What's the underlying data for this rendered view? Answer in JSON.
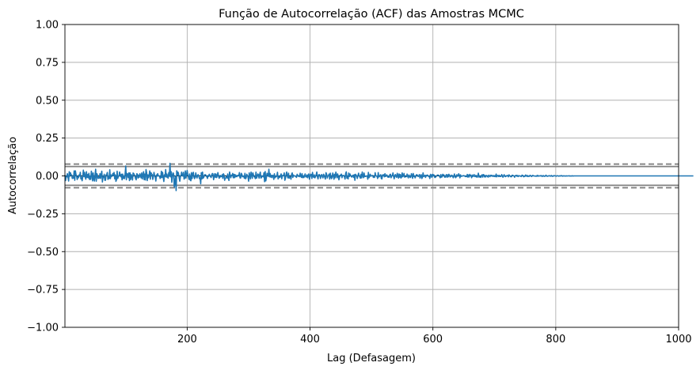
{
  "chart_data": {
    "type": "line",
    "title": "Função de Autocorrelação (ACF) das Amostras MCMC",
    "xlabel": "Lag (Defasagem)",
    "ylabel": "Autocorrelação",
    "xlim": [
      1,
      1000
    ],
    "ylim": [
      -1.0,
      1.0
    ],
    "grid": true,
    "x_ticks": [
      200,
      400,
      600,
      800,
      1000
    ],
    "x_tick_labels": [
      "200",
      "400",
      "600",
      "800",
      "1000"
    ],
    "y_ticks": [
      1.0,
      0.75,
      0.5,
      0.25,
      0.0,
      -0.25,
      -0.5,
      -0.75,
      -1.0
    ],
    "y_tick_labels": [
      "1.00",
      "0.75",
      "0.50",
      "0.25",
      "0.00",
      "−0.25",
      "−0.50",
      "−0.75",
      "−1.00"
    ],
    "reference_lines": {
      "zero": 0.0,
      "ci_95_dashed": [
        0.078,
        -0.078
      ],
      "ci_99_dashed": [
        0.062,
        -0.062
      ]
    },
    "series_color": "#1f77b4",
    "series": [
      {
        "values": [
          0.006,
          -0.031,
          -0.005,
          -0.006,
          0.015,
          -0.01,
          -0.034,
          0.028,
          -0.002,
          0.021,
          0.005,
          0.006,
          -0.017,
          -0.01,
          -0.015,
          0.033,
          -0.029,
          0.034,
          0.009,
          -0.002,
          -0.024,
          -0.005,
          -0.012,
          0.006,
          -0.001,
          0.024,
          -0.02,
          -0.009,
          -0.032,
          -0.004,
          0.038,
          -0.005,
          0.023,
          -0.008,
          -0.022,
          0.028,
          -0.01,
          0.009,
          -0.013,
          0.017,
          -0.024,
          -0.001,
          -0.023,
          0.031,
          0.012,
          -0.033,
          0.019,
          -0.021,
          -0.034,
          0.005,
          0.044,
          -0.035,
          0.015,
          0.004,
          -0.017,
          -0.009,
          -0.014,
          0.015,
          -0.017,
          0.01,
          0.031,
          -0.04,
          -0.004,
          -0.011,
          0.011,
          -0.029,
          -0.029,
          0.007,
          0.009,
          0.023,
          -0.023,
          -0.001,
          -0.018,
          0.041,
          -0.018,
          0.006,
          -0.004,
          0.003,
          0.016,
          0.002,
          0.023,
          -0.019,
          0.007,
          -0.036,
          -0.025,
          0.031,
          -0.017,
          -0.003,
          -0.001,
          0.026,
          0.005,
          -0.006,
          0.011,
          -0.026,
          0.012,
          -0.017,
          0.0,
          -0.018,
          0.015,
          0.065,
          -0.025,
          0.016,
          0.012,
          -0.011,
          0.02,
          -0.031,
          0.02,
          -0.024,
          0.008,
          -0.001,
          -0.027,
          0.019,
          0.015,
          0.008,
          -0.002,
          -0.017,
          -0.026,
          0.014,
          0.012,
          -0.015,
          0.004,
          -0.009,
          0.014,
          0.003,
          -0.013,
          0.02,
          -0.02,
          0.004,
          0.028,
          -0.025,
          0.012,
          -0.027,
          0.042,
          0.021,
          -0.031,
          0.007,
          -0.012,
          0.004,
          0.033,
          -0.022,
          0.022,
          0.013,
          0.009,
          -0.023,
          -0.003,
          0.023,
          0.001,
          -0.007,
          -0.034,
          0.006,
          -0.001,
          0.015,
          -0.001,
          0.001,
          -0.001,
          -0.017,
          -0.012,
          0.031,
          -0.011,
          0.023,
          -0.009,
          -0.037,
          0.007,
          -0.004,
          0.042,
          -0.008,
          0.012,
          -0.008,
          -0.015,
          0.022,
          -0.002,
          0.083,
          -0.006,
          0.028,
          -0.042,
          0.003,
          0.02,
          0.012,
          -0.073,
          -0.045,
          -0.002,
          -0.097,
          0.034,
          0.004,
          0.025,
          0.014,
          -0.015,
          -0.035,
          -0.004,
          0.004,
          0.025,
          0.002,
          -0.001,
          0.024,
          -0.021,
          -0.014,
          0.033,
          -0.014,
          0.009,
          0.036,
          0.008,
          -0.006,
          -0.023,
          0.013,
          -0.027,
          -0.032,
          0.022,
          -0.018,
          0.013,
          0.024,
          -0.006,
          -0.018,
          -0.009,
          0.02,
          -0.002,
          -0.014,
          0.004,
          0.008,
          -0.003,
          -0.018,
          -0.012,
          -0.052,
          0.021,
          -0.02,
          0.025,
          -0.015,
          -0.009,
          0.004,
          0.009,
          0.007,
          0.001,
          -0.006,
          -0.017,
          0.002,
          -0.003,
          0.011,
          0.001,
          -0.005,
          -0.011,
          0.008,
          0.016,
          0.013,
          -0.025,
          -0.003,
          0.015,
          -0.01,
          0.012,
          -0.011,
          0.002,
          0.022,
          0.001,
          -0.015,
          -0.011,
          0.003,
          -0.005,
          -0.004,
          0.008,
          -0.016,
          0.014,
          0.006,
          -0.029,
          -0.013,
          -0.013,
          -0.004,
          -0.014,
          0.013,
          -0.017,
          -0.03,
          0.026,
          0.006,
          -0.012,
          0.004,
          0.001,
          0.016,
          -0.012,
          0.011,
          -0.012,
          0.009,
          -0.006,
          0.003,
          -0.005,
          0.003,
          0.004,
          0.0,
          0.022,
          -0.013,
          -0.014,
          0.017,
          0.011,
          -0.006,
          -0.001,
          -0.001,
          -0.015,
          0.017,
          -0.019,
          -0.012,
          0.011,
          0.001,
          -0.005,
          -0.035,
          0.02,
          0.002,
          -0.02,
          0.025,
          0.01,
          -0.016,
          0.02,
          0.005,
          -0.005,
          -0.008,
          -0.018,
          0.025,
          -0.015,
          -0.004,
          0.013,
          0.008,
          -0.015,
          0.01,
          0.025,
          -0.014,
          -0.011,
          0.001,
          -0.002,
          -0.006,
          0.021,
          -0.038,
          0.029,
          -0.033,
          -0.01,
          0.017,
          0.011,
          -0.002,
          0.044,
          -0.006,
          0.016,
          -0.008,
          0.004,
          -0.011,
          0.004,
          0.003,
          -0.023,
          0.014,
          -0.012,
          -0.003,
          -0.006,
          0.001,
          0.024,
          -0.02,
          -0.002,
          -0.011,
          -0.01,
          0.004,
          0.013,
          -0.019,
          0.003,
          0.001,
          0.005,
          0.02,
          -0.029,
          -0.016,
          0.01,
          0.026,
          -0.001,
          -0.013,
          0.018,
          -0.015,
          -0.01,
          -0.007,
          -0.022,
          0.011,
          0.02,
          -0.01,
          0.006,
          -0.001,
          -0.0,
          0.0,
          -0.005,
          -0.01,
          0.011,
          0.003,
          -0.003,
          0.002,
          -0.005,
          0.018,
          -0.003,
          -0.01,
          0.015,
          -0.012,
          0.001,
          -0.011,
          0.001,
          0.013,
          -0.006,
          -0.007,
          0.006,
          -0.012,
          0.006,
          0.013,
          -0.022,
          -0.004,
          0.011,
          0.009,
          -0.017,
          0.023,
          -0.003,
          -0.01,
          0.007,
          -0.013,
          -0.003,
          0.007,
          0.026,
          -0.006,
          -0.02,
          0.006,
          0.009,
          0.003,
          -0.017,
          0.003,
          0.009,
          -0.004,
          -0.013,
          0.011,
          0.003,
          -0.01,
          -0.021,
          0.021,
          0.012,
          -0.014,
          -0.001,
          0.002,
          0.012,
          -0.021,
          0.018,
          -0.007,
          -0.018,
          -0.008,
          0.019,
          0.001,
          -0.022,
          0.011,
          -0.012,
          0.025,
          0.008,
          -0.012,
          0.013,
          -0.004,
          -0.026,
          -0.009,
          0.005,
          0.002,
          0.012,
          -0.012,
          0.003,
          0.002,
          0.003,
          -0.006,
          -0.021,
          0.016,
          0.027,
          -0.015,
          -0.003,
          -0.02,
          0.019,
          -0.004,
          0.013,
          0.004,
          -0.003,
          -0.008,
          0.001,
          0.005,
          -0.01,
          0.008,
          -0.029,
          0.011,
          0.005,
          -0.001,
          -0.017,
          0.002,
          0.018,
          0.001,
          -0.006,
          -0.015,
          0.011,
          -0.013,
          0.026,
          0.001,
          -0.012,
          0.019,
          -0.005,
          -0.004,
          -0.001,
          -0.002,
          0.001,
          -0.022,
          0.023,
          -0.012,
          -0.004,
          0.011,
          -0.001,
          0.0,
          0.002,
          0.003,
          -0.01,
          -0.009,
          -0.01,
          0.021,
          0.001,
          -0.001,
          -0.002,
          -0.017,
          0.022,
          -0.007,
          -0.004,
          0.004,
          0.008,
          -0.017,
          -0.02,
          0.007,
          0.001,
          0.008,
          -0.006,
          0.015,
          -0.004,
          0.002,
          0.007,
          -0.004,
          -0.009,
          -0.002,
          -0.009,
          0.01,
          0.011,
          -0.012,
          0.001,
          0.001,
          0.02,
          -0.004,
          -0.019,
          0.002,
          0.009,
          -0.005,
          -0.01,
          0.017,
          0.002,
          -0.015,
          0.013,
          -0.008,
          0.009,
          -0.014,
          -0.008,
          0.02,
          -0.005,
          -0.0,
          0.016,
          -0.008,
          -0.007,
          -0.004,
          -0.004,
          0.012,
          -0.003,
          -0.013,
          0.006,
          -0.001,
          -0.011,
          -0.008,
          0.015,
          0.005,
          -0.016,
          0.016,
          -0.004,
          0.001,
          -0.013,
          -0.004,
          0.007,
          0.008,
          0.002,
          -0.004,
          -0.0,
          0.009,
          -0.014,
          0.001,
          0.008,
          -0.017,
          -0.009,
          0.02,
          -0.004,
          -0.001,
          0.004,
          -0.01,
          0.004,
          0.0,
          0.006,
          0.002,
          -0.003,
          -0.004,
          -0.017,
          0.01,
          0.004,
          -0.009,
          0.01,
          -0.002,
          0.008,
          0.005,
          -0.01,
          -0.01,
          -0.004,
          -0.0,
          0.004,
          0.006,
          0.004,
          0.003,
          -0.005,
          -0.012,
          0.009,
          -0.008,
          -0.006,
          0.011,
          0.004,
          0.007,
          -0.008,
          -0.009,
          0.001,
          0.009,
          -0.009,
          0.007,
          -0.006,
          0.011,
          0.005,
          -0.007,
          -0.004,
          0.005,
          -0.002,
          0.002,
          -0.012,
          -0.005,
          0.013,
          -0.002,
          -0.012,
          -0.006,
          0.008,
          -0.002,
          -0.001,
          0.014,
          0.004,
          -0.013,
          0.007,
          -0.003,
          -0.002,
          -0.001,
          0.002,
          0.002,
          -0.001,
          0.001,
          -0.005,
          -0.003,
          -0.005,
          0.01,
          -0.008,
          0.006,
          -0.007,
          0.01,
          0.005,
          0.001,
          -0.012,
          0.006,
          -0.004,
          -0.0,
          0.009,
          -0.004,
          -0.005,
          0.004,
          -0.006,
          -0.009,
          0.001,
          0.018,
          -0.008,
          0.001,
          -0.008,
          -0.01,
          0.003,
          0.007,
          -0.008,
          0.009,
          0.007,
          -0.007,
          0.003,
          -0.007,
          0.003,
          0.002,
          -0.004,
          -0.008,
          0.005,
          -0.0,
          -0.005,
          0.004,
          0.004,
          -0.002,
          0.003,
          -0.003,
          0.002,
          -0.004,
          0.002,
          -0.005,
          0.012,
          -0.006,
          0.002,
          0.003,
          -0.004,
          0.004,
          -0.004,
          -0.003,
          -0.003,
          0.009,
          0.0,
          -0.009,
          0.0,
          0.008,
          -0.002,
          -0.005,
          0.001,
          -0.002,
          0.003,
          0.003,
          -0.006,
          0.007,
          -0.0,
          -0.001,
          -0.006,
          -0.005,
          0.004,
          0.004,
          0.001,
          0.0,
          -0.009,
          0.001,
          0.003,
          0.004,
          -0.003,
          0.003,
          -0.004,
          0.001,
          0.001,
          -0.001,
          -0.002,
          -0.004,
          0.005,
          0.004,
          -0.001,
          -0.006,
          -0.0,
          -0.003,
          0.006,
          0.002,
          -0.003,
          0.003,
          -0.004,
          -0.001,
          -0.003,
          0.004,
          0.002,
          -0.002,
          -0.004,
          0.003,
          0.003,
          0.0,
          -0.001,
          0.0,
          -0.001,
          -0.003,
          -0.0,
          0.004,
          -0.003,
          0.001,
          0.001,
          -0.001,
          -0.0,
          0.003,
          -0.001,
          -0.004,
          0.002,
          0.002,
          -0.003,
          -0.001,
          -0.002,
          0.005,
          0.001,
          -0.003,
          -0.001,
          -0.001,
          0.002,
          0.001,
          -0.002,
          0.0,
          0.003,
          -0.003,
          0.0,
          -0.002,
          0.002,
          0.001,
          0.001,
          -0.001,
          -0.002,
          0.001,
          0.001,
          -0.0,
          -0.002,
          0.0,
          0.001,
          -0.001,
          0.002,
          0.002,
          -0.002,
          -0.001,
          0.001,
          0.0,
          -0.001,
          -0.001,
          0.001,
          -0.001,
          0.0,
          0.0,
          0.0,
          0.001,
          -0.001,
          -0.0,
          -0.001,
          0.0,
          0.001,
          -0.001,
          -0.0,
          0.0,
          0.0,
          -0.0,
          0.0,
          -0.0,
          0.0,
          -0.0,
          0.0,
          0.0,
          -0.0,
          0.0,
          -0.0,
          -0.0,
          0.0,
          -0.0,
          -0.0,
          0.0,
          -0.0,
          0.0,
          0.0,
          0.0,
          0.0,
          -0.0,
          -0.0,
          0.0,
          0.0,
          -0.0,
          -0.0,
          0.0,
          -0.0,
          -0.0,
          0.0,
          0.0,
          -0.0,
          0.0,
          0.0,
          0.0,
          -0.0,
          -0.0,
          0.0,
          0.0,
          0.0,
          0.0,
          -0.0,
          -0.0,
          -0.0,
          -0.0,
          0.0,
          -0.0,
          0.0,
          0.0,
          0.0,
          0.0,
          -0.0,
          -0.0,
          0.0,
          -0.0,
          -0.0,
          0.0,
          0.0,
          0.0,
          -0.0,
          -0.0,
          0.0,
          0.0,
          0.0,
          -0.0,
          -0.0,
          -0.0,
          -0.0,
          0.0,
          0.0,
          -0.0,
          0.0,
          0.0,
          0.0,
          -0.0,
          -0.0,
          -0.0,
          0.0,
          0.0,
          -0.0,
          0.0,
          -0.0,
          -0.0,
          0.0,
          0.0,
          0.0,
          0.0,
          -0.0,
          -0.0,
          -0.0,
          0.0,
          -0.0,
          0.0,
          0.0,
          0.0,
          -0.0,
          -0.0,
          0.0,
          0.0,
          -0.0,
          0.0,
          -0.0,
          -0.0,
          -0.0,
          0.0,
          0.0,
          -0.0,
          0.0,
          0.0,
          0.0,
          0.0,
          -0.0,
          -0.0,
          -0.0,
          -0.0,
          0.0,
          0.0,
          0.0,
          0.0,
          -0.0,
          -0.0,
          0.0,
          -0.0,
          -0.0,
          0.0,
          0.0,
          0.0,
          0.0,
          -0.0,
          -0.0,
          -0.0,
          0.0,
          0.0,
          -0.0,
          0.0,
          -0.0,
          0.0,
          -0.0,
          -0.0,
          0.0,
          0.0,
          0.0,
          0.0,
          -0.0,
          -0.0,
          -0.0,
          0.0,
          -0.0,
          0.0,
          0.0,
          -0.0,
          0.0,
          -0.0,
          0.0,
          -0.0,
          0.0,
          0.0,
          -0.0,
          0.0,
          -0.0,
          -0.0,
          0.0,
          0.0,
          0.0,
          -0.0,
          -0.0,
          0.0,
          0.0,
          -0.0,
          -0.0,
          0.0,
          0.0,
          0.0,
          -0.0,
          -0.0,
          -0.0,
          0.0,
          0.0,
          0.0,
          -0.0,
          0.0,
          -0.0,
          0.0,
          -0.0,
          0.0,
          -0.0,
          0.0,
          -0.0,
          -0.0,
          0.0,
          -0.0,
          0.0,
          0.0
        ]
      }
    ]
  }
}
